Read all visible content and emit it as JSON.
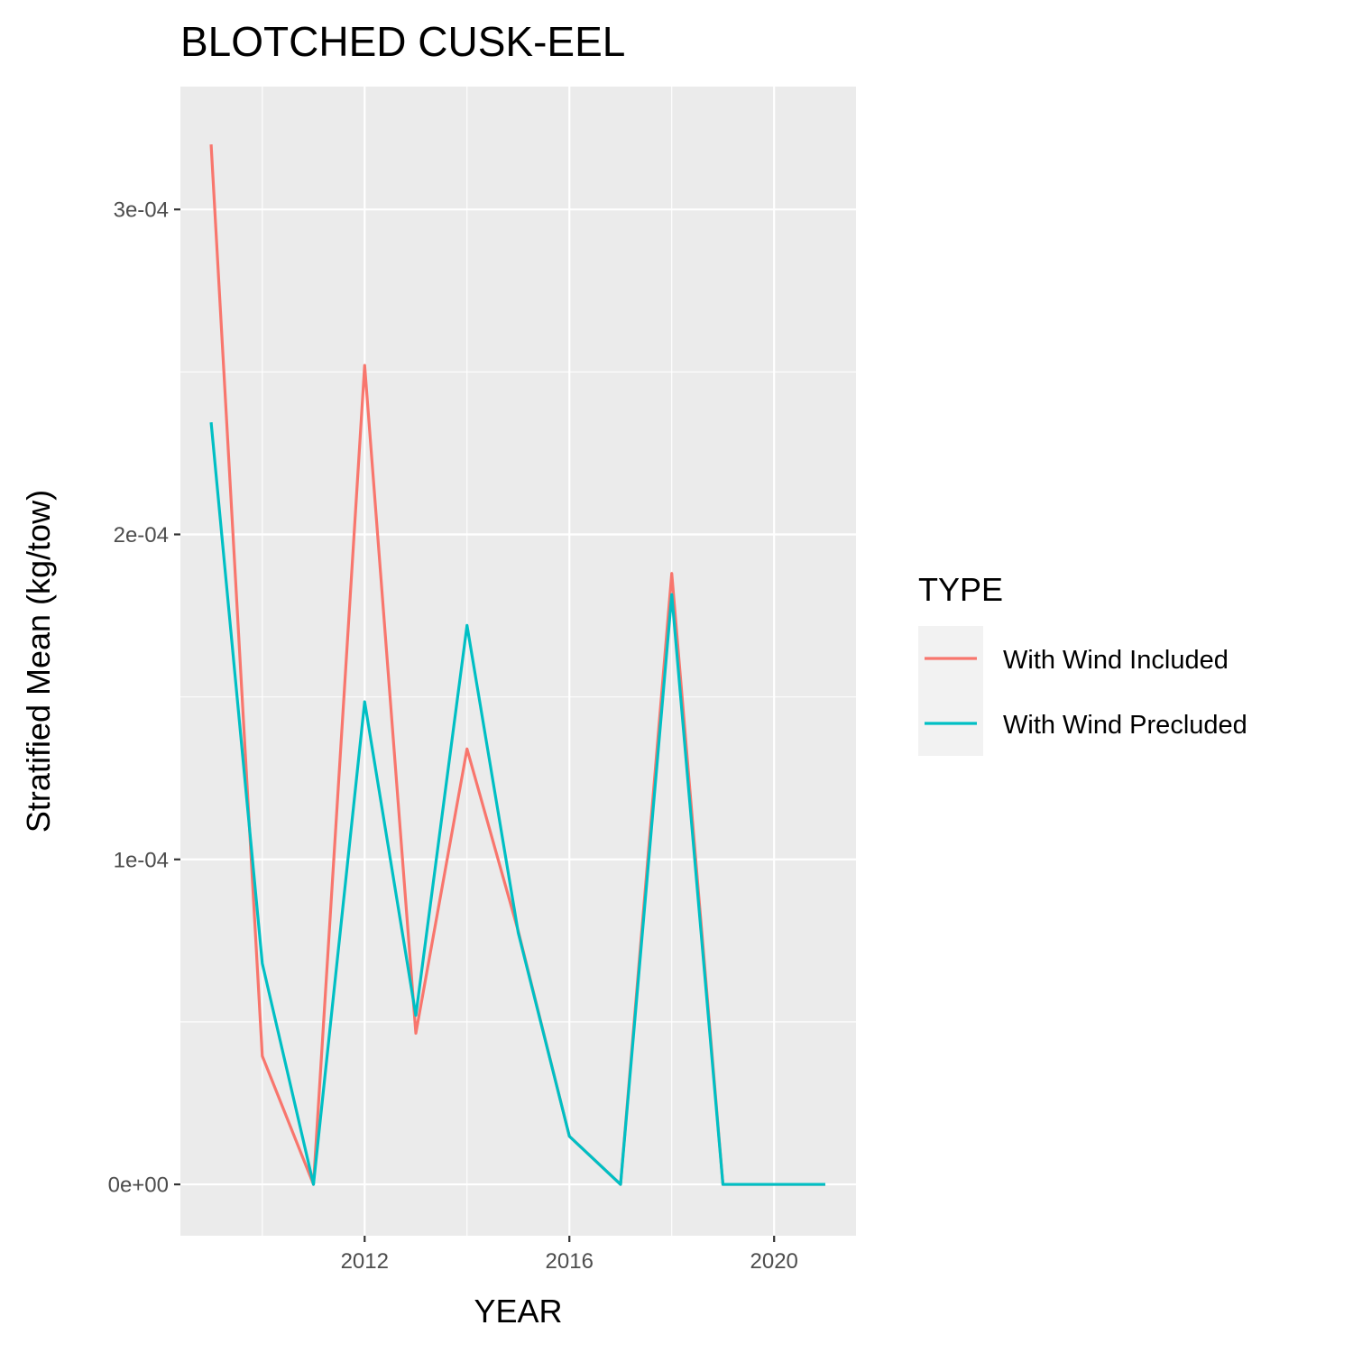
{
  "chart_data": {
    "type": "line",
    "title": "BLOTCHED CUSK-EEL",
    "xlabel": "YEAR",
    "ylabel": "Stratified Mean (kg/tow)",
    "x": [
      2009,
      2010,
      2011,
      2012,
      2013,
      2014,
      2015,
      2016,
      2017,
      2018,
      2019,
      2020,
      2021
    ],
    "xlim": [
      2008.4,
      2021.6
    ],
    "ylim": [
      -1.58e-05,
      0.0003378
    ],
    "x_ticks": [
      2012,
      2016,
      2020
    ],
    "x_tick_labels": [
      "2012",
      "2016",
      "2020"
    ],
    "y_ticks": [
      0,
      0.0001,
      0.0002,
      0.0003
    ],
    "y_tick_labels": [
      "0e+00",
      "1e-04",
      "2e-04",
      "3e-04"
    ],
    "grid": true,
    "legend": {
      "title": "TYPE",
      "position": "right"
    },
    "series": [
      {
        "name": "With Wind Included",
        "color": "#F8766D",
        "values": [
          0.00032,
          3.95e-05,
          0.0,
          0.000252,
          4.65e-05,
          0.000134,
          7.8e-05,
          1.48e-05,
          0.0,
          0.000188,
          0.0,
          0.0,
          0.0
        ]
      },
      {
        "name": "With Wind Precluded",
        "color": "#00BFC4",
        "values": [
          0.0002345,
          6.8e-05,
          0.0,
          0.0001485,
          5.2e-05,
          0.000172,
          7.75e-05,
          1.48e-05,
          0.0,
          0.0001815,
          0.0,
          0.0,
          0.0
        ]
      }
    ]
  }
}
